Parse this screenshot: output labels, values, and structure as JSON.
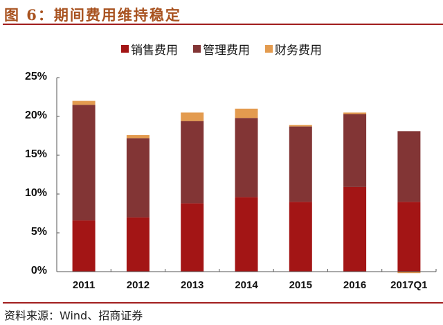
{
  "header": {
    "title": "图 6：期间费用维持稳定"
  },
  "legend": [
    {
      "label": "销售费用",
      "color": "#a31515"
    },
    {
      "label": "管理费用",
      "color": "#823535"
    },
    {
      "label": "财务费用",
      "color": "#e39b4f"
    }
  ],
  "footer": {
    "source": "资料来源：Wind、招商证券"
  },
  "chart_data": {
    "type": "bar",
    "stacked": true,
    "title": "期间费用维持稳定",
    "xlabel": "",
    "ylabel": "",
    "ylim": [
      0,
      25
    ],
    "yticks": [
      "0%",
      "5%",
      "10%",
      "15%",
      "20%",
      "25%"
    ],
    "categories": [
      "2011",
      "2012",
      "2013",
      "2014",
      "2015",
      "2016",
      "2017Q1"
    ],
    "series": [
      {
        "name": "销售费用",
        "color": "#a31515",
        "values": [
          6.6,
          7.0,
          8.8,
          9.6,
          9.0,
          10.9,
          9.0
        ]
      },
      {
        "name": "管理费用",
        "color": "#823535",
        "values": [
          14.9,
          10.2,
          10.6,
          10.2,
          9.7,
          9.4,
          9.1
        ]
      },
      {
        "name": "财务费用",
        "color": "#e39b4f",
        "values": [
          0.5,
          0.4,
          1.1,
          1.2,
          0.2,
          0.2,
          -0.2
        ]
      }
    ],
    "grid": false,
    "legend_position": "top"
  }
}
